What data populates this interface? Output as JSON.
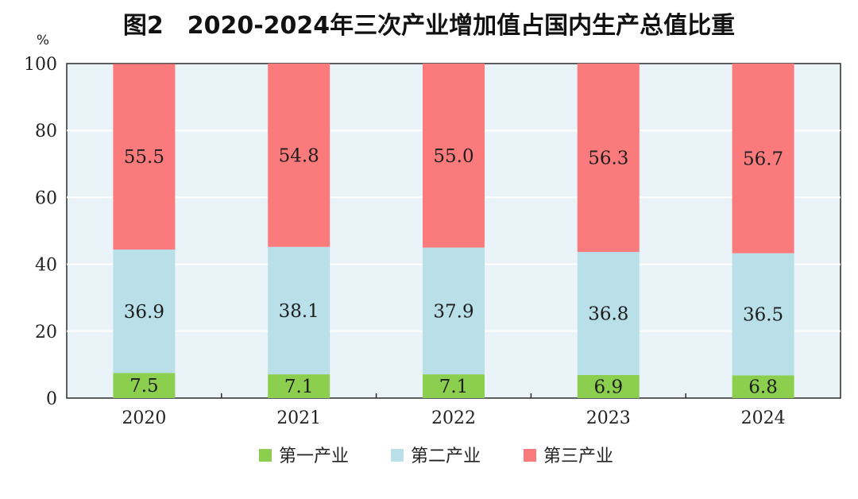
{
  "chart_data": {
    "type": "bar",
    "stacked": true,
    "title": "图2　2020-2024年三次产业增加值占国内生产总值比重",
    "unit": "%",
    "categories": [
      "2020",
      "2021",
      "2022",
      "2023",
      "2024"
    ],
    "series": [
      {
        "name": "第一产业",
        "values": [
          7.5,
          7.1,
          7.1,
          6.9,
          6.8
        ],
        "labels": [
          "7.5",
          "7.1",
          "7.1",
          "6.9",
          "6.8"
        ],
        "color": "#8ccf4f"
      },
      {
        "name": "第二产业",
        "values": [
          36.9,
          38.1,
          37.9,
          36.8,
          36.5
        ],
        "labels": [
          "36.9",
          "38.1",
          "37.9",
          "36.8",
          "36.5"
        ],
        "color": "#b9dfe8"
      },
      {
        "name": "第三产业",
        "values": [
          55.5,
          54.8,
          55.0,
          56.3,
          56.7
        ],
        "labels": [
          "55.5",
          "54.8",
          "55.0",
          "56.3",
          "56.7"
        ],
        "color": "#fb7b7d"
      }
    ],
    "yticks": [
      "0",
      "20",
      "40",
      "60",
      "80",
      "100"
    ],
    "ylim": [
      0,
      100
    ],
    "grid": true,
    "plot_background": "#eaf3f7",
    "legend_position": "bottom"
  }
}
